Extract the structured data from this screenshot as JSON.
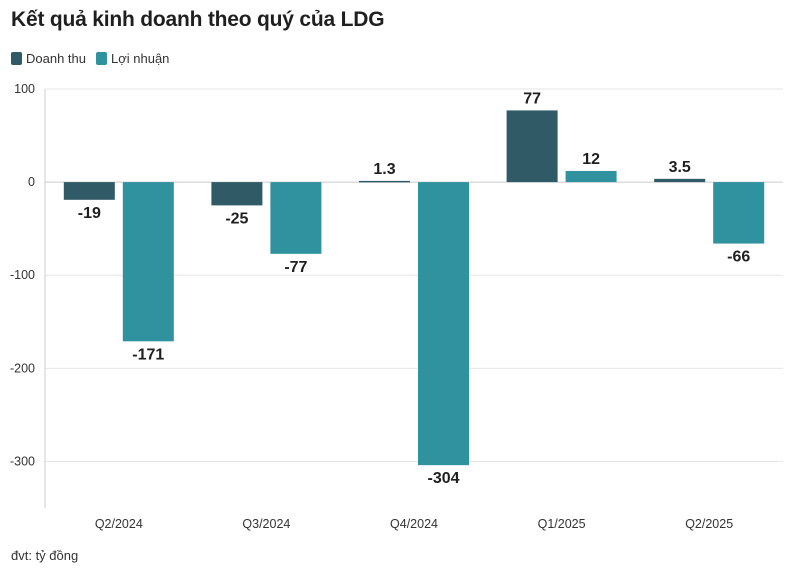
{
  "title": "Kết quả kinh doanh theo quý của LDG",
  "footnote": "đvt: tỷ đồng",
  "chart_data": {
    "type": "bar",
    "title": "Kết quả kinh doanh theo quý của LDG",
    "categories": [
      "Q2/2024",
      "Q3/2024",
      "Q4/2024",
      "Q1/2025",
      "Q2/2025"
    ],
    "series": [
      {
        "name": "Doanh thu",
        "color": "#2f5a66",
        "values": [
          -19,
          -25,
          1.3,
          77,
          3.5
        ],
        "labels": [
          "-19",
          "-25",
          "1.3",
          "77",
          "3.5"
        ]
      },
      {
        "name": "Lợi nhuận",
        "color": "#30919f",
        "values": [
          -171,
          -77,
          -304,
          12,
          -66
        ],
        "labels": [
          "-171",
          "-77",
          "-304",
          "12",
          "-66"
        ]
      }
    ],
    "ylim": [
      -350,
      100
    ],
    "yticks": [
      100,
      0,
      -100,
      -200,
      -300
    ],
    "ytick_labels": [
      "100",
      "0",
      "-100",
      "-200",
      "-300"
    ],
    "grid": true,
    "legend_position": "top-left"
  }
}
